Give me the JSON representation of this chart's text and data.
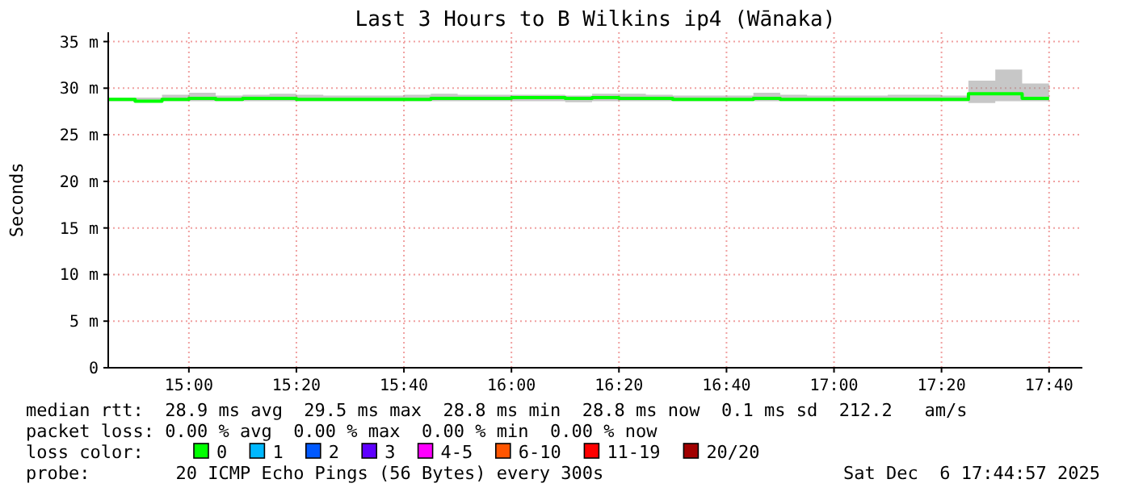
{
  "chart_data": {
    "type": "step",
    "title": "Last 3 Hours to B Wilkins ip4 (Wānaka)",
    "ylabel": "Seconds",
    "legend_title": "loss color:",
    "x": [
      14.75,
      14.8333,
      14.9167,
      15,
      15.0833,
      15.1667,
      15.25,
      15.3333,
      15.4167,
      15.5,
      15.5833,
      15.6667,
      15.75,
      15.8333,
      15.9167,
      16,
      16.0833,
      16.1667,
      16.25,
      16.3333,
      16.4167,
      16.5,
      16.5833,
      16.6667,
      16.75,
      16.8333,
      16.9167,
      17,
      17.0833,
      17.1667,
      17.25,
      17.3333,
      17.4167,
      17.5,
      17.5833,
      17.6667
    ],
    "series": [
      {
        "name": "0",
        "color": "#00ff00",
        "values": [
          28.8,
          28.6,
          28.8,
          28.9,
          28.8,
          28.9,
          28.9,
          28.8,
          28.8,
          28.8,
          28.8,
          28.8,
          28.9,
          28.9,
          28.9,
          29.0,
          29.0,
          28.9,
          29.0,
          28.9,
          28.9,
          28.8,
          28.8,
          28.8,
          28.9,
          28.8,
          28.8,
          28.8,
          28.8,
          28.8,
          28.8,
          28.8,
          29.4,
          29.4,
          28.9,
          28.9
        ],
        "lower": [
          28.6,
          28.5,
          28.6,
          28.6,
          28.6,
          28.6,
          28.6,
          28.6,
          28.6,
          28.6,
          28.6,
          28.6,
          28.6,
          28.6,
          28.6,
          28.6,
          28.6,
          28.5,
          28.6,
          28.6,
          28.6,
          28.6,
          28.6,
          28.6,
          28.6,
          28.6,
          28.6,
          28.6,
          28.6,
          28.6,
          28.6,
          28.6,
          28.4,
          28.6,
          28.6,
          28.6
        ],
        "upper": [
          29.0,
          29.0,
          29.3,
          29.5,
          29.2,
          29.3,
          29.4,
          29.3,
          29.2,
          29.2,
          29.2,
          29.3,
          29.4,
          29.3,
          29.3,
          29.3,
          29.3,
          29.2,
          29.4,
          29.4,
          29.3,
          29.2,
          29.2,
          29.2,
          29.5,
          29.3,
          29.2,
          29.2,
          29.2,
          29.3,
          29.3,
          29.2,
          30.8,
          32.0,
          30.5,
          30.5
        ]
      },
      {
        "name": "1",
        "color": "#00b8ff",
        "values": [
          null,
          null,
          null,
          null,
          null,
          null,
          null,
          null,
          null,
          null,
          null,
          null,
          null,
          null,
          null,
          null,
          null,
          null,
          null,
          null,
          null,
          null,
          null,
          null,
          null,
          null,
          null,
          null,
          null,
          null,
          null,
          null,
          null,
          null,
          null,
          null
        ]
      },
      {
        "name": "2",
        "color": "#0059ff",
        "values": [
          null,
          null,
          null,
          null,
          null,
          null,
          null,
          null,
          null,
          null,
          null,
          null,
          null,
          null,
          null,
          null,
          null,
          null,
          null,
          null,
          null,
          null,
          null,
          null,
          null,
          null,
          null,
          null,
          null,
          null,
          null,
          null,
          null,
          null,
          null,
          null
        ]
      },
      {
        "name": "3",
        "color": "#5e00ff",
        "values": [
          null,
          null,
          null,
          null,
          null,
          null,
          null,
          null,
          null,
          null,
          null,
          null,
          null,
          null,
          null,
          null,
          null,
          null,
          null,
          null,
          null,
          null,
          null,
          null,
          null,
          null,
          null,
          null,
          null,
          null,
          null,
          null,
          null,
          null,
          null,
          null
        ]
      },
      {
        "name": "4-5",
        "color": "#ff00ff",
        "values": [
          null,
          null,
          null,
          null,
          null,
          null,
          null,
          null,
          null,
          null,
          null,
          null,
          null,
          null,
          null,
          null,
          null,
          null,
          null,
          null,
          null,
          null,
          null,
          null,
          null,
          null,
          null,
          null,
          null,
          null,
          null,
          null,
          null,
          null,
          null,
          null
        ]
      },
      {
        "name": "6-10",
        "color": "#ff5500",
        "values": [
          null,
          null,
          null,
          null,
          null,
          null,
          null,
          null,
          null,
          null,
          null,
          null,
          null,
          null,
          null,
          null,
          null,
          null,
          null,
          null,
          null,
          null,
          null,
          null,
          null,
          null,
          null,
          null,
          null,
          null,
          null,
          null,
          null,
          null,
          null,
          null
        ]
      },
      {
        "name": "11-19",
        "color": "#ff0000",
        "values": [
          null,
          null,
          null,
          null,
          null,
          null,
          null,
          null,
          null,
          null,
          null,
          null,
          null,
          null,
          null,
          null,
          null,
          null,
          null,
          null,
          null,
          null,
          null,
          null,
          null,
          null,
          null,
          null,
          null,
          null,
          null,
          null,
          null,
          null,
          null,
          null
        ]
      },
      {
        "name": "20/20",
        "color": "#a10000",
        "values": [
          null,
          null,
          null,
          null,
          null,
          null,
          null,
          null,
          null,
          null,
          null,
          null,
          null,
          null,
          null,
          null,
          null,
          null,
          null,
          null,
          null,
          null,
          null,
          null,
          null,
          null,
          null,
          null,
          null,
          null,
          null,
          null,
          null,
          null,
          null,
          null
        ]
      }
    ],
    "xlim": [
      14.75,
      17.77
    ],
    "xticks": [
      {
        "value": 15,
        "label": "15:00"
      },
      {
        "value": 15.3333,
        "label": "15:20"
      },
      {
        "value": 15.6667,
        "label": "15:40"
      },
      {
        "value": 16,
        "label": "16:00"
      },
      {
        "value": 16.3333,
        "label": "16:20"
      },
      {
        "value": 16.6667,
        "label": "16:40"
      },
      {
        "value": 17,
        "label": "17:00"
      },
      {
        "value": 17.3333,
        "label": "17:20"
      },
      {
        "value": 17.6667,
        "label": "17:40"
      }
    ],
    "ylim": [
      0,
      36
    ],
    "yticks": [
      {
        "value": 0,
        "label": "0"
      },
      {
        "value": 5,
        "label": "5 m"
      },
      {
        "value": 10,
        "label": "10 m"
      },
      {
        "value": 15,
        "label": "15 m"
      },
      {
        "value": 20,
        "label": "20 m"
      },
      {
        "value": 25,
        "label": "25 m"
      },
      {
        "value": 30,
        "label": "30 m"
      },
      {
        "value": 35,
        "label": "35 m"
      }
    ],
    "grid": true,
    "legend": "bottom",
    "line_style": "solid",
    "annotations": [
      "median rtt:  28.9 ms avg  29.5 ms max  28.8 ms min  28.8 ms now  0.1 ms sd  212.2   am/s",
      "packet loss: 0.00 % avg  0.00 % max  0.00 % min  0.00 % now",
      "probe:        20 ICMP Echo Pings (56 Bytes) every 300s",
      "Sat Dec  6 17:44:57 2025"
    ]
  }
}
